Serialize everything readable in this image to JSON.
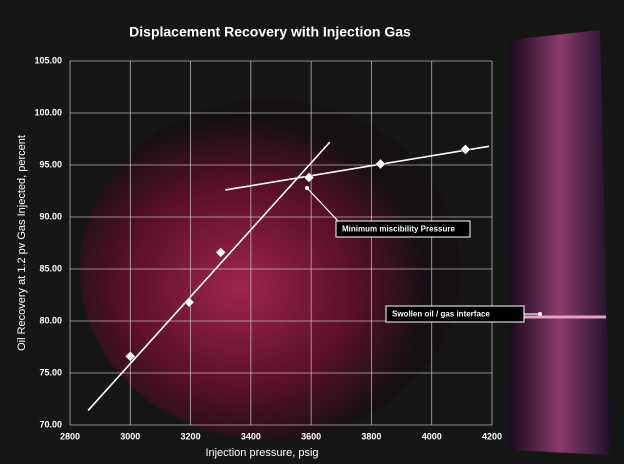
{
  "chart_data": {
    "type": "scatter",
    "title": "Displacement Recovery with Injection Gas",
    "x_label": "Injection pressure, psig",
    "y_label": "Oil Recovery at 1.2 pv Gas Injected, percent",
    "xlim": [
      2800,
      4200
    ],
    "xticks": [
      2800,
      3000,
      3200,
      3400,
      3600,
      3800,
      4000,
      4200
    ],
    "ylim": [
      70,
      105
    ],
    "yticks": [
      {
        "value": 70,
        "label": "70.00"
      },
      {
        "value": 75,
        "label": "75.00"
      },
      {
        "value": 80,
        "label": "80.00"
      },
      {
        "value": 85,
        "label": "85.00"
      },
      {
        "value": 90,
        "label": "90.00"
      },
      {
        "value": 95,
        "label": "95.00"
      },
      {
        "value": 100,
        "label": "100.00"
      },
      {
        "value": 105,
        "label": "105.00"
      }
    ],
    "grid": true,
    "series": [
      {
        "color": "#ffffff",
        "x": [
          3000,
          3195,
          3300,
          3593,
          3830,
          4112
        ],
        "values": [
          76.6,
          81.8,
          86.6,
          93.8,
          95.1,
          96.5
        ]
      }
    ],
    "lines": [
      {
        "color": "#ffffff",
        "x": [
          2860,
          3662
        ],
        "values": [
          71.4,
          97.2
        ]
      },
      {
        "color": "#ffffff",
        "x": [
          3315,
          4190
        ],
        "values": [
          92.6,
          96.8
        ]
      }
    ],
    "annotations": [
      "Minimum  miscibility  Pressure",
      "Swollen oil / gas interface"
    ]
  }
}
